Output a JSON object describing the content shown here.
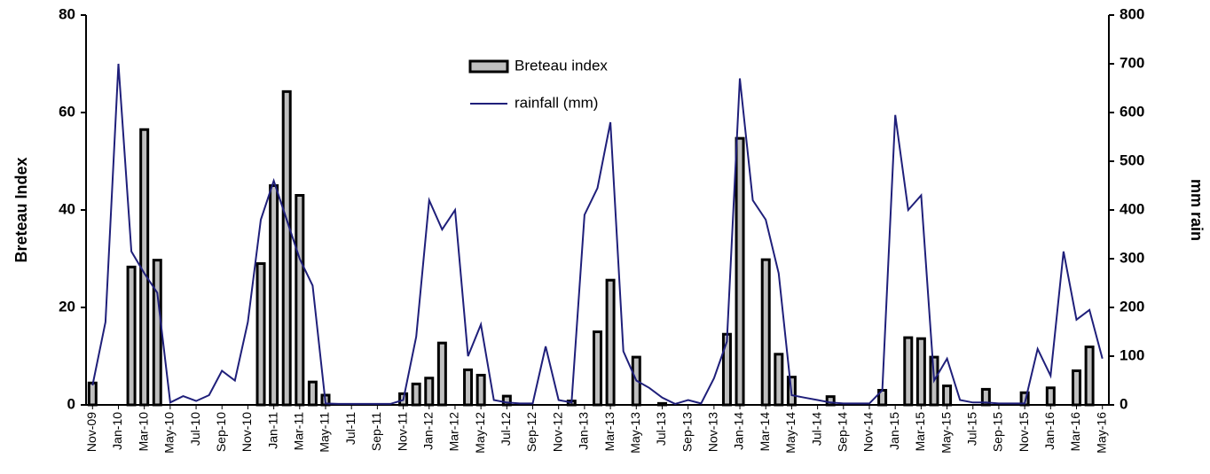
{
  "chart_data": {
    "type": "bar-line",
    "ylabel": "Breteau Index",
    "y2label": "mm rain",
    "categories": [
      "Nov-09",
      null,
      "Jan-10",
      null,
      "Mar-10",
      null,
      "May-10",
      null,
      "Jul-10",
      null,
      "Sep-10",
      null,
      "Nov-10",
      null,
      "Jan-11",
      null,
      "Mar-11",
      null,
      "May-11",
      null,
      "Jul-11",
      null,
      "Sep-11",
      null,
      "Nov-11",
      null,
      "Jan-12",
      null,
      "Mar-12",
      null,
      "May-12",
      null,
      "Jul-12",
      null,
      "Sep-12",
      null,
      "Nov-12",
      null,
      "Jan-13",
      null,
      "Mar-13",
      null,
      "May-13",
      null,
      "Jul-13",
      null,
      "Sep-13",
      null,
      "Nov-13",
      null,
      "Jan-14",
      null,
      "Mar-14",
      null,
      "May-14",
      null,
      "Jul-14",
      null,
      "Sep-14",
      null,
      "Nov-14",
      null,
      "Jan-15",
      null,
      "Mar-15",
      null,
      "May-15",
      null,
      "Jul-15",
      null,
      "Sep-15",
      null,
      "Nov-15",
      null,
      "Jan-16",
      null,
      "Mar-16",
      null,
      "May-16"
    ],
    "series": [
      {
        "name": "Breteau index",
        "type": "bar",
        "color": "#bfbfbf",
        "axis": "y",
        "values": [
          4.5,
          null,
          null,
          28.3,
          56.5,
          29.7,
          null,
          null,
          null,
          null,
          null,
          null,
          null,
          29,
          45,
          64.3,
          43,
          4.7,
          2,
          null,
          null,
          null,
          null,
          null,
          2.3,
          4.3,
          5.5,
          12.7,
          null,
          7.2,
          6.1,
          null,
          1.8,
          null,
          null,
          null,
          null,
          0.8,
          null,
          15,
          25.6,
          null,
          9.8,
          null,
          0.3,
          null,
          null,
          null,
          null,
          14.5,
          54.7,
          null,
          29.8,
          10.4,
          5.7,
          null,
          null,
          1.7,
          null,
          null,
          null,
          3,
          null,
          13.8,
          13.6,
          9.8,
          3.9,
          null,
          null,
          3.2,
          null,
          null,
          2.5,
          null,
          3.5,
          null,
          7,
          11.9,
          null
        ]
      },
      {
        "name": "rainfall (mm)",
        "type": "line",
        "color": "#1f1f7a",
        "axis": "y2",
        "values": [
          40,
          170,
          700,
          315,
          270,
          230,
          5,
          18,
          8,
          20,
          70,
          50,
          170,
          380,
          460,
          380,
          300,
          245,
          3,
          2,
          2,
          2,
          2,
          2,
          10,
          140,
          420,
          360,
          400,
          100,
          165,
          10,
          5,
          3,
          3,
          120,
          10,
          5,
          390,
          445,
          580,
          110,
          50,
          35,
          15,
          2,
          10,
          3,
          55,
          130,
          670,
          420,
          380,
          270,
          20,
          15,
          10,
          5,
          3,
          3,
          3,
          30,
          595,
          400,
          430,
          50,
          95,
          10,
          5,
          5,
          3,
          3,
          3,
          115,
          60,
          315,
          175,
          195,
          95
        ]
      }
    ],
    "ylim": [
      0,
      80
    ],
    "yticks": [
      0,
      20,
      40,
      60,
      80
    ],
    "y2lim": [
      0,
      800
    ],
    "y2ticks": [
      0,
      100,
      200,
      300,
      400,
      500,
      600,
      700,
      800
    ]
  }
}
